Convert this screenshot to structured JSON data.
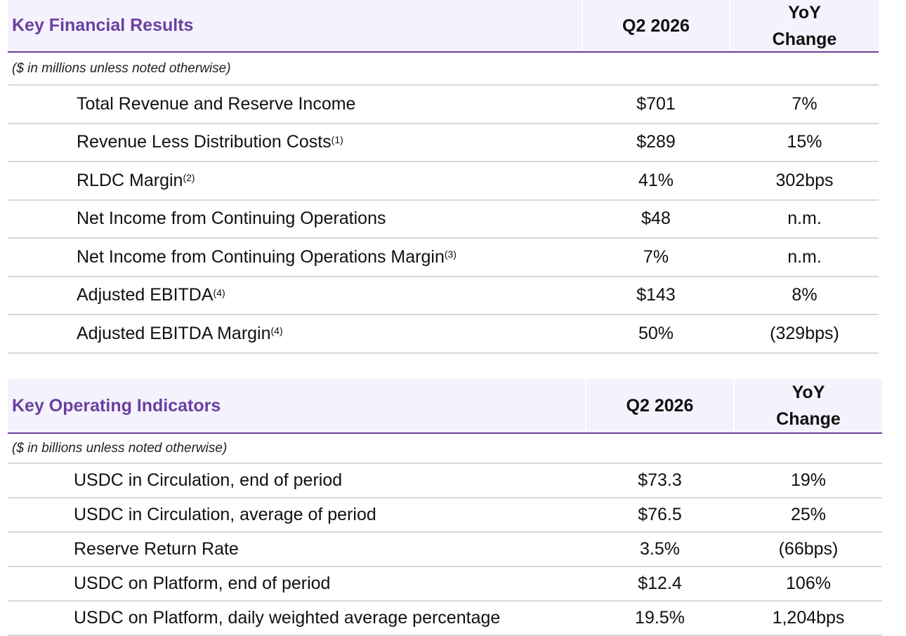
{
  "financial": {
    "title": "Key Financial Results",
    "col_period": "Q2 2026",
    "col_change_line1": "YoY",
    "col_change_line2": "Change",
    "note": "($ in millions unless noted otherwise)",
    "rows": [
      {
        "label": "Total Revenue and Reserve Income",
        "sup": "",
        "value": "$701",
        "change": "7%"
      },
      {
        "label": "Revenue Less Distribution Costs",
        "sup": "(1)",
        "value": "$289",
        "change": "15%"
      },
      {
        "label": "RLDC Margin",
        "sup": "(2)",
        "value": "41%",
        "change": "302bps"
      },
      {
        "label": "Net Income from Continuing Operations",
        "sup": "",
        "value": "$48",
        "change": "n.m."
      },
      {
        "label": "Net Income from Continuing Operations Margin",
        "sup": "(3)",
        "value": "7%",
        "change": "n.m."
      },
      {
        "label": "Adjusted EBITDA",
        "sup": "(4)",
        "value": "$143",
        "change": "8%"
      },
      {
        "label": "Adjusted EBITDA Margin",
        "sup": "(4)",
        "value": "50%",
        "change": "(329bps)"
      }
    ]
  },
  "operating": {
    "title": "Key Operating Indicators",
    "col_period": "Q2 2026",
    "col_change_line1": "YoY",
    "col_change_line2": "Change",
    "note": "($ in billions unless noted otherwise)",
    "rows": [
      {
        "label": "USDC in Circulation, end of period",
        "value": "$73.3",
        "change": "19%"
      },
      {
        "label": "USDC in Circulation, average of period",
        "value": "$76.5",
        "change": "25%"
      },
      {
        "label": "Reserve Return Rate",
        "value": "3.5%",
        "change": "(66bps)"
      },
      {
        "label": "USDC on Platform, end of period",
        "value": "$12.4",
        "change": "106%"
      },
      {
        "label": "USDC on Platform, daily weighted average percentage",
        "value": "19.5%",
        "change": "1,204bps"
      }
    ]
  },
  "colors": {
    "accent": "#6b3fa0",
    "header_bg": "#f4f2fc",
    "rule": "#d8d8d8"
  }
}
